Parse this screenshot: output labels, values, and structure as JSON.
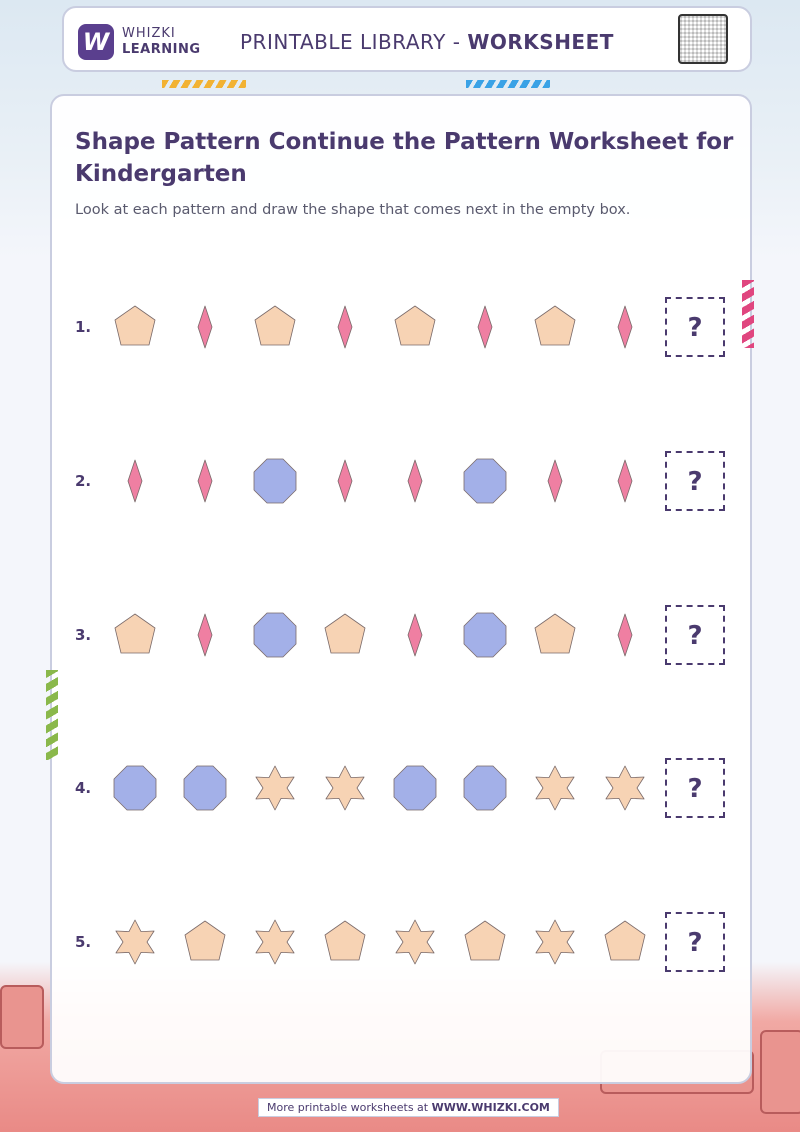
{
  "header": {
    "brand_line1": "WHIZKI",
    "brand_line2": "LEARNING",
    "logo_letter": "W",
    "library_label": "PRINTABLE LIBRARY - ",
    "library_kind": "WORKSHEET"
  },
  "worksheet": {
    "title": "Shape Pattern Continue the Pattern Worksheet for Kindergarten",
    "instructions": "Look at each pattern and draw the shape that comes next in the empty box.",
    "answer_mark": "?",
    "rows": [
      {
        "number": "1.",
        "shapes": [
          "pentagon",
          "diamond",
          "pentagon",
          "diamond",
          "pentagon",
          "diamond",
          "pentagon",
          "diamond"
        ]
      },
      {
        "number": "2.",
        "shapes": [
          "diamond",
          "diamond",
          "octagon",
          "diamond",
          "diamond",
          "octagon",
          "diamond",
          "diamond"
        ]
      },
      {
        "number": "3.",
        "shapes": [
          "pentagon",
          "diamond",
          "octagon",
          "pentagon",
          "diamond",
          "octagon",
          "pentagon",
          "diamond"
        ]
      },
      {
        "number": "4.",
        "shapes": [
          "octagon",
          "octagon",
          "star",
          "star",
          "octagon",
          "octagon",
          "star",
          "star"
        ]
      },
      {
        "number": "5.",
        "shapes": [
          "star",
          "pentagon",
          "star",
          "pentagon",
          "star",
          "pentagon",
          "star",
          "pentagon"
        ]
      }
    ]
  },
  "colors": {
    "pentagon": "#f7d3b4",
    "star": "#f7d3b4",
    "diamond": "#ef7fa2",
    "octagon": "#a3b0e8",
    "outline": "#7a6a6a",
    "brand": "#4a3a6e"
  },
  "footer": {
    "prefix": "More printable worksheets at ",
    "site": "WWW.WHIZKI.COM"
  }
}
